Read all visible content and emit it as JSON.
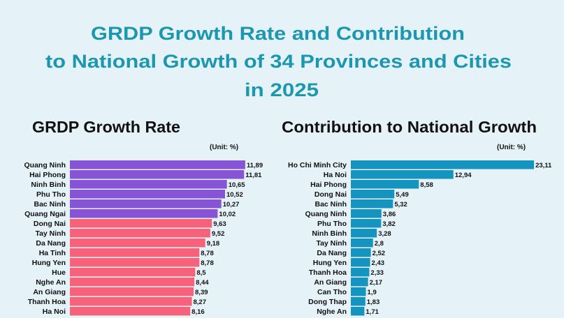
{
  "title_lines": [
    "GRDP Growth Rate and Contribution",
    "to National Growth of 34 Provinces and Cities",
    "in 2025"
  ],
  "colors": {
    "background": "#e5f2f8",
    "title": "#1c97b0",
    "top_group": "#8754d6",
    "other_group": "#f5627a",
    "contribution": "#1594bf"
  },
  "chart_data": [
    {
      "type": "bar",
      "orientation": "horizontal",
      "title": "GRDP Growth Rate",
      "unit": "(Unit: %)",
      "categories": [
        "Quang Ninh",
        "Hai Phong",
        "Ninh Binh",
        "Phu Tho",
        "Bac Ninh",
        "Quang Ngai",
        "Dong Nai",
        "Tay Ninh",
        "Da Nang",
        "Ha Tinh",
        "Hung Yen",
        "Hue",
        "Nghe An",
        "An Giang",
        "Thanh Hoa",
        "Ha Noi"
      ],
      "values": [
        11.89,
        11.81,
        10.65,
        10.52,
        10.27,
        10.02,
        9.63,
        9.52,
        9.18,
        8.78,
        8.78,
        8.5,
        8.44,
        8.39,
        8.27,
        8.16
      ],
      "bar_colors": [
        "#8754d6",
        "#8754d6",
        "#8754d6",
        "#8754d6",
        "#8754d6",
        "#8754d6",
        "#f5627a",
        "#f5627a",
        "#f5627a",
        "#f5627a",
        "#f5627a",
        "#f5627a",
        "#f5627a",
        "#f5627a",
        "#f5627a",
        "#f5627a"
      ],
      "xlim": [
        0,
        12
      ],
      "grid": false,
      "decimal_separator": ","
    },
    {
      "type": "bar",
      "orientation": "horizontal",
      "title": "Contribution to National Growth",
      "unit": "(Unit: %)",
      "categories": [
        "Ho Chi Minh City",
        "Ha Noi",
        "Hai Phong",
        "Dong Nai",
        "Bac Ninh",
        "Quang Ninh",
        "Phu Tho",
        "Ninh Binh",
        "Tay Ninh",
        "Da Nang",
        "Hung Yen",
        "Thanh Hoa",
        "An Giang",
        "Can Tho",
        "Dong Thap",
        "Nghe An"
      ],
      "values": [
        23.11,
        12.94,
        8.58,
        5.49,
        5.32,
        3.86,
        3.82,
        3.28,
        2.8,
        2.52,
        2.43,
        2.33,
        2.17,
        1.9,
        1.83,
        1.71
      ],
      "bar_colors": [
        "#1594bf"
      ],
      "xlim": [
        0,
        24
      ],
      "grid": false,
      "decimal_separator": ","
    }
  ]
}
